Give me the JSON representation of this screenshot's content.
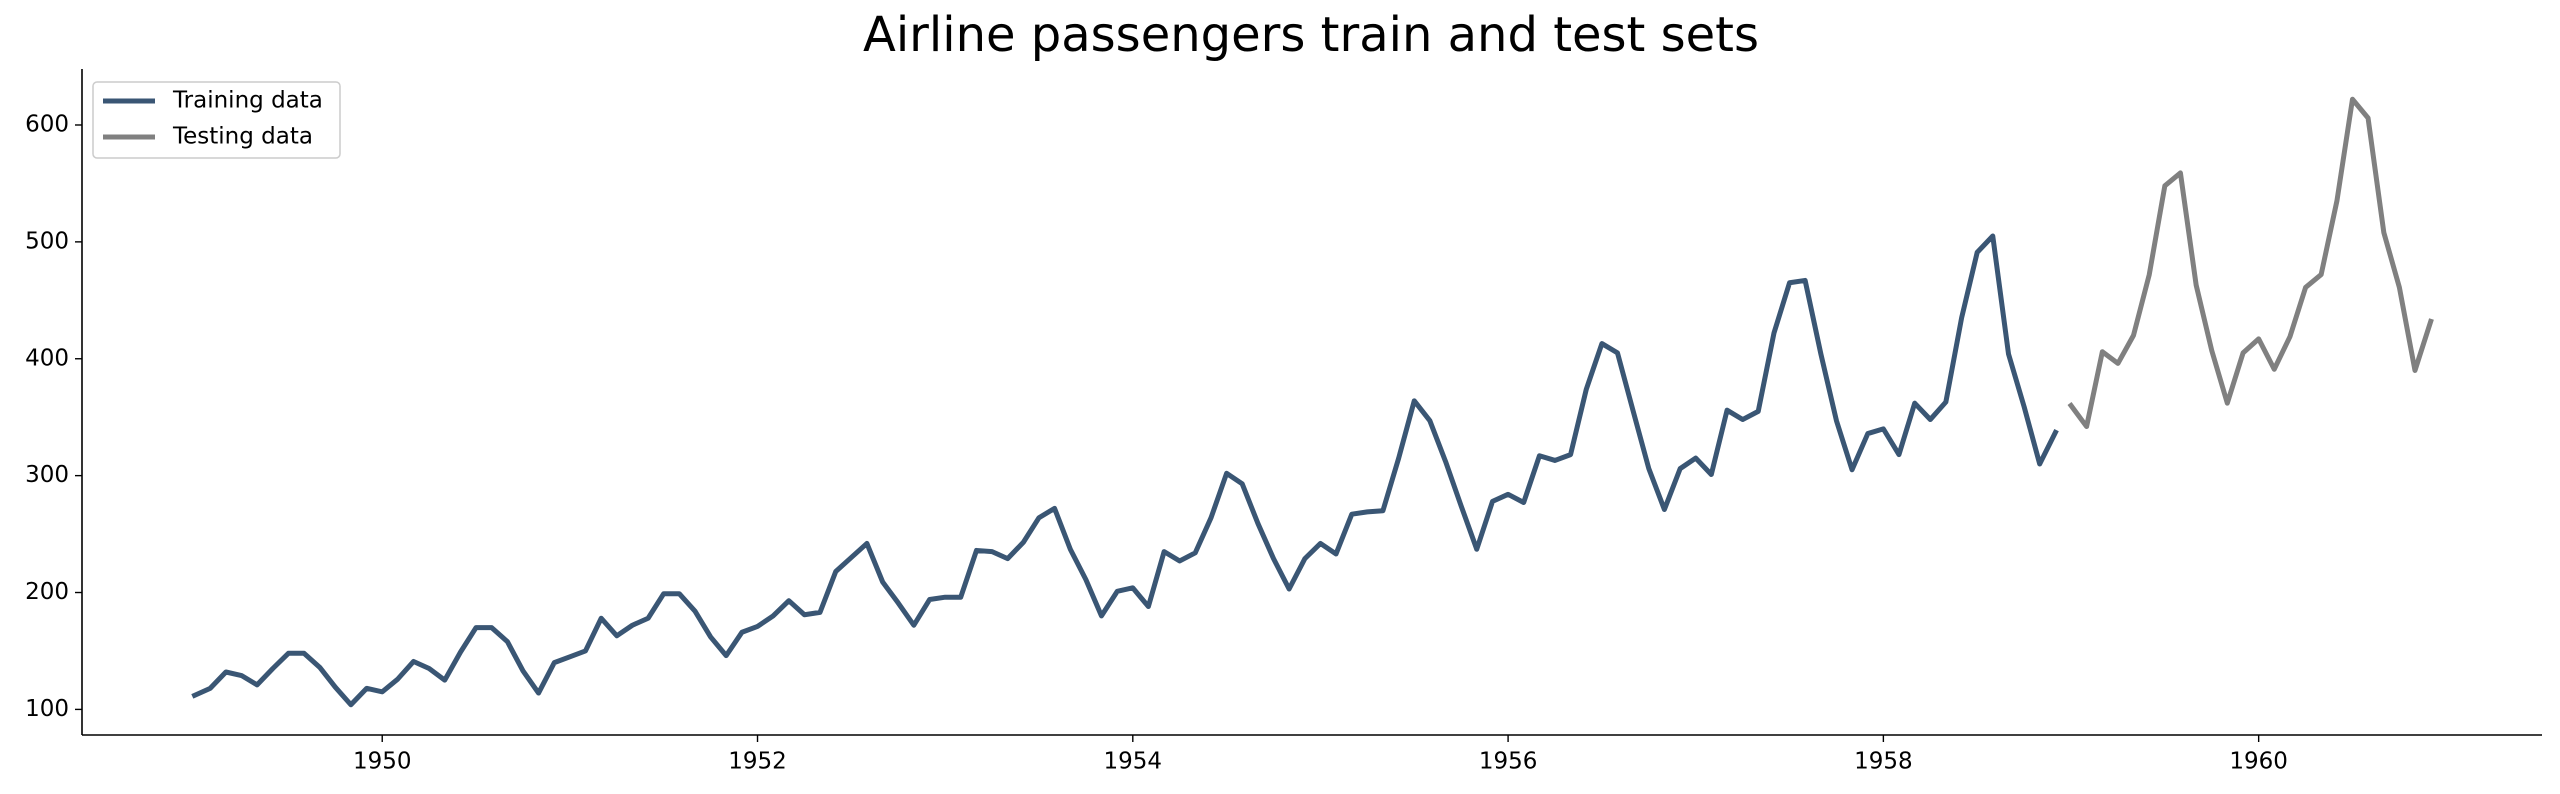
{
  "chart_data": {
    "type": "line",
    "title": "Airline passengers train and test sets",
    "xlim": [
      1948.4,
      1961.51
    ],
    "xticks": [
      1950,
      1952,
      1954,
      1956,
      1958,
      1960
    ],
    "ylim": [
      78.1,
      647.9
    ],
    "yticks": [
      100,
      200,
      300,
      400,
      500,
      600
    ],
    "grid": false,
    "legend": "upper left",
    "series": [
      {
        "name": "Training data",
        "color": "#3a5674",
        "x": [
          1949.0,
          1949.083,
          1949.167,
          1949.25,
          1949.333,
          1949.417,
          1949.5,
          1949.583,
          1949.667,
          1949.75,
          1949.833,
          1949.917,
          1950.0,
          1950.083,
          1950.167,
          1950.25,
          1950.333,
          1950.417,
          1950.5,
          1950.583,
          1950.667,
          1950.75,
          1950.833,
          1950.917,
          1951.0,
          1951.083,
          1951.167,
          1951.25,
          1951.333,
          1951.417,
          1951.5,
          1951.583,
          1951.667,
          1951.75,
          1951.833,
          1951.917,
          1952.0,
          1952.083,
          1952.167,
          1952.25,
          1952.333,
          1952.417,
          1952.5,
          1952.583,
          1952.667,
          1952.75,
          1952.833,
          1952.917,
          1953.0,
          1953.083,
          1953.167,
          1953.25,
          1953.333,
          1953.417,
          1953.5,
          1953.583,
          1953.667,
          1953.75,
          1953.833,
          1953.917,
          1954.0,
          1954.083,
          1954.167,
          1954.25,
          1954.333,
          1954.417,
          1954.5,
          1954.583,
          1954.667,
          1954.75,
          1954.833,
          1954.917,
          1955.0,
          1955.083,
          1955.167,
          1955.25,
          1955.333,
          1955.417,
          1955.5,
          1955.583,
          1955.667,
          1955.75,
          1955.833,
          1955.917,
          1956.0,
          1956.083,
          1956.167,
          1956.25,
          1956.333,
          1956.417,
          1956.5,
          1956.583,
          1956.667,
          1956.75,
          1956.833,
          1956.917,
          1957.0,
          1957.083,
          1957.167,
          1957.25,
          1957.333,
          1957.417,
          1957.5,
          1957.583,
          1957.667,
          1957.75,
          1957.833,
          1957.917,
          1958.0,
          1958.083,
          1958.167,
          1958.25,
          1958.333,
          1958.417,
          1958.5,
          1958.583,
          1958.667,
          1958.75,
          1958.833,
          1958.917
        ],
        "values": [
          112,
          118,
          132,
          129,
          121,
          135,
          148,
          148,
          136,
          119,
          104,
          118,
          115,
          126,
          141,
          135,
          125,
          149,
          170,
          170,
          158,
          133,
          114,
          140,
          145,
          150,
          178,
          163,
          172,
          178,
          199,
          199,
          184,
          162,
          146,
          166,
          171,
          180,
          193,
          181,
          183,
          218,
          230,
          242,
          209,
          191,
          172,
          194,
          196,
          196,
          236,
          235,
          229,
          243,
          264,
          272,
          237,
          211,
          180,
          201,
          204,
          188,
          235,
          227,
          234,
          264,
          302,
          293,
          259,
          229,
          203,
          229,
          242,
          233,
          267,
          269,
          270,
          315,
          364,
          347,
          312,
          274,
          237,
          278,
          284,
          277,
          317,
          313,
          318,
          374,
          413,
          405,
          355,
          306,
          271,
          306,
          315,
          301,
          356,
          348,
          355,
          422,
          465,
          467,
          404,
          347,
          305,
          336,
          340,
          318,
          362,
          348,
          363,
          435,
          491,
          505,
          404,
          359,
          310,
          337
        ]
      },
      {
        "name": "Testing data",
        "color": "#808080",
        "x": [
          1959.0,
          1959.083,
          1959.167,
          1959.25,
          1959.333,
          1959.417,
          1959.5,
          1959.583,
          1959.667,
          1959.75,
          1959.833,
          1959.917,
          1960.0,
          1960.083,
          1960.167,
          1960.25,
          1960.333,
          1960.417,
          1960.5,
          1960.583,
          1960.667,
          1960.75,
          1960.833,
          1960.917
        ],
        "values": [
          360,
          342,
          406,
          396,
          420,
          472,
          548,
          559,
          463,
          407,
          362,
          405,
          417,
          391,
          419,
          461,
          472,
          535,
          622,
          606,
          508,
          461,
          390,
          432
        ]
      }
    ]
  }
}
